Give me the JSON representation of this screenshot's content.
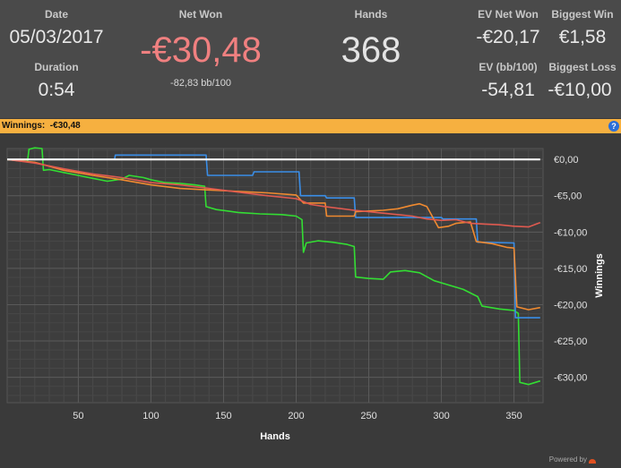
{
  "summary": {
    "date_label": "Date",
    "date_value": "05/03/2017",
    "duration_label": "Duration",
    "duration_value": "0:54",
    "net_won_label": "Net Won",
    "net_won_value": "-€30,48",
    "net_won_bb": "-82,83 bb/100",
    "hands_label": "Hands",
    "hands_value": "368",
    "ev_net_won_label": "EV Net Won",
    "ev_net_won_value": "-€20,17",
    "ev_bb_label": "EV (bb/100)",
    "ev_bb_value": "-54,81",
    "biggest_win_label": "Biggest Win",
    "biggest_win_value": "€1,58",
    "biggest_loss_label": "Biggest Loss",
    "biggest_loss_value": "-€10,00"
  },
  "winnings_bar": {
    "label": "Winnings:",
    "value": "-€30,48",
    "help_glyph": "?"
  },
  "footer": {
    "powered_by": "Powered by"
  },
  "colors": {
    "green": "#33dd33",
    "blue": "#3a8ee8",
    "orange": "#f08a30",
    "red": "#e05a50",
    "zero_line": "#ffffff",
    "accent_bar": "#f6b040",
    "negative_text": "#f08080"
  },
  "chart_data": {
    "type": "line",
    "xlabel": "Hands",
    "ylabel": "Winnings",
    "xlim": [
      1,
      370
    ],
    "ylim": [
      -33.5,
      1.5
    ],
    "x_ticks": [
      50,
      100,
      150,
      200,
      250,
      300,
      350
    ],
    "y_ticks": [
      {
        "v": 0,
        "label": "€0,00"
      },
      {
        "v": -5,
        "label": "-€5,00"
      },
      {
        "v": -10,
        "label": "-€10,00"
      },
      {
        "v": -15,
        "label": "-€15,00"
      },
      {
        "v": -20,
        "label": "-€20,00"
      },
      {
        "v": -25,
        "label": "-€25,00"
      },
      {
        "v": -30,
        "label": "-€30,00"
      }
    ],
    "grid": true,
    "series": [
      {
        "color": "#33dd33",
        "width": 1.6,
        "points": [
          [
            1,
            0
          ],
          [
            10,
            -0.2
          ],
          [
            15,
            -0.3
          ],
          [
            16,
            1.4
          ],
          [
            20,
            1.6
          ],
          [
            25,
            1.5
          ],
          [
            26,
            -1.5
          ],
          [
            30,
            -1.4
          ],
          [
            40,
            -1.8
          ],
          [
            50,
            -2.2
          ],
          [
            60,
            -2.6
          ],
          [
            70,
            -3.0
          ],
          [
            80,
            -2.7
          ],
          [
            85,
            -2.2
          ],
          [
            95,
            -2.5
          ],
          [
            100,
            -2.8
          ],
          [
            110,
            -3.2
          ],
          [
            120,
            -3.3
          ],
          [
            130,
            -3.5
          ],
          [
            137,
            -3.7
          ],
          [
            138,
            -6.5
          ],
          [
            145,
            -6.9
          ],
          [
            160,
            -7.3
          ],
          [
            175,
            -7.5
          ],
          [
            190,
            -7.6
          ],
          [
            200,
            -7.8
          ],
          [
            204,
            -8.3
          ],
          [
            205,
            -12.8
          ],
          [
            207,
            -11.5
          ],
          [
            215,
            -11.2
          ],
          [
            225,
            -11.4
          ],
          [
            235,
            -11.7
          ],
          [
            240,
            -12.0
          ],
          [
            241,
            -16.2
          ],
          [
            250,
            -16.4
          ],
          [
            260,
            -16.5
          ],
          [
            265,
            -15.5
          ],
          [
            275,
            -15.3
          ],
          [
            285,
            -15.6
          ],
          [
            295,
            -16.7
          ],
          [
            305,
            -17.3
          ],
          [
            315,
            -17.9
          ],
          [
            325,
            -18.9
          ],
          [
            328,
            -20.2
          ],
          [
            340,
            -20.6
          ],
          [
            350,
            -20.8
          ],
          [
            353,
            -21.2
          ],
          [
            354,
            -30.7
          ],
          [
            360,
            -31.0
          ],
          [
            368,
            -30.5
          ]
        ]
      },
      {
        "color": "#3a8ee8",
        "width": 1.6,
        "points": [
          [
            1,
            0
          ],
          [
            75,
            0
          ],
          [
            75.5,
            0.6
          ],
          [
            138,
            0.6
          ],
          [
            139,
            -2.2
          ],
          [
            170,
            -2.2
          ],
          [
            171,
            -1.7
          ],
          [
            202,
            -1.7
          ],
          [
            203,
            -5.0
          ],
          [
            220,
            -5.0
          ],
          [
            221,
            -5.3
          ],
          [
            240,
            -5.3
          ],
          [
            241,
            -8.0
          ],
          [
            300,
            -8.0
          ],
          [
            301,
            -8.2
          ],
          [
            324,
            -8.2
          ],
          [
            325,
            -11.4
          ],
          [
            350,
            -11.5
          ],
          [
            351,
            -21.8
          ],
          [
            368,
            -21.8
          ]
        ]
      },
      {
        "color": "#f08a30",
        "width": 1.6,
        "points": [
          [
            1,
            0
          ],
          [
            20,
            -0.4
          ],
          [
            40,
            -1.5
          ],
          [
            60,
            -2.2
          ],
          [
            80,
            -2.8
          ],
          [
            100,
            -3.5
          ],
          [
            120,
            -4.0
          ],
          [
            140,
            -4.2
          ],
          [
            160,
            -4.4
          ],
          [
            180,
            -4.6
          ],
          [
            200,
            -4.9
          ],
          [
            205,
            -6.0
          ],
          [
            220,
            -6.0
          ],
          [
            221,
            -7.8
          ],
          [
            240,
            -7.8
          ],
          [
            241,
            -7.2
          ],
          [
            260,
            -7.0
          ],
          [
            270,
            -6.8
          ],
          [
            280,
            -6.3
          ],
          [
            285,
            -6.1
          ],
          [
            290,
            -6.5
          ],
          [
            298,
            -9.4
          ],
          [
            305,
            -9.2
          ],
          [
            310,
            -8.8
          ],
          [
            320,
            -8.6
          ],
          [
            324,
            -11.3
          ],
          [
            335,
            -11.6
          ],
          [
            345,
            -12.1
          ],
          [
            350,
            -12.2
          ],
          [
            352,
            -20.3
          ],
          [
            360,
            -20.7
          ],
          [
            368,
            -20.4
          ]
        ]
      },
      {
        "color": "#e05a50",
        "width": 1.6,
        "points": [
          [
            1,
            0
          ],
          [
            20,
            -0.5
          ],
          [
            40,
            -1.3
          ],
          [
            60,
            -2.0
          ],
          [
            80,
            -2.5
          ],
          [
            100,
            -3.2
          ],
          [
            120,
            -3.5
          ],
          [
            140,
            -4.0
          ],
          [
            160,
            -4.5
          ],
          [
            180,
            -5.0
          ],
          [
            200,
            -5.4
          ],
          [
            210,
            -6.2
          ],
          [
            220,
            -6.5
          ],
          [
            240,
            -7.0
          ],
          [
            260,
            -7.4
          ],
          [
            280,
            -7.8
          ],
          [
            290,
            -8.2
          ],
          [
            300,
            -8.4
          ],
          [
            310,
            -8.3
          ],
          [
            320,
            -8.8
          ],
          [
            330,
            -8.9
          ],
          [
            340,
            -9.0
          ],
          [
            350,
            -9.2
          ],
          [
            360,
            -9.3
          ],
          [
            368,
            -8.7
          ]
        ]
      },
      {
        "color": "#ffffff",
        "width": 2.2,
        "points": [
          [
            1,
            0
          ],
          [
            368,
            0
          ]
        ]
      }
    ]
  }
}
